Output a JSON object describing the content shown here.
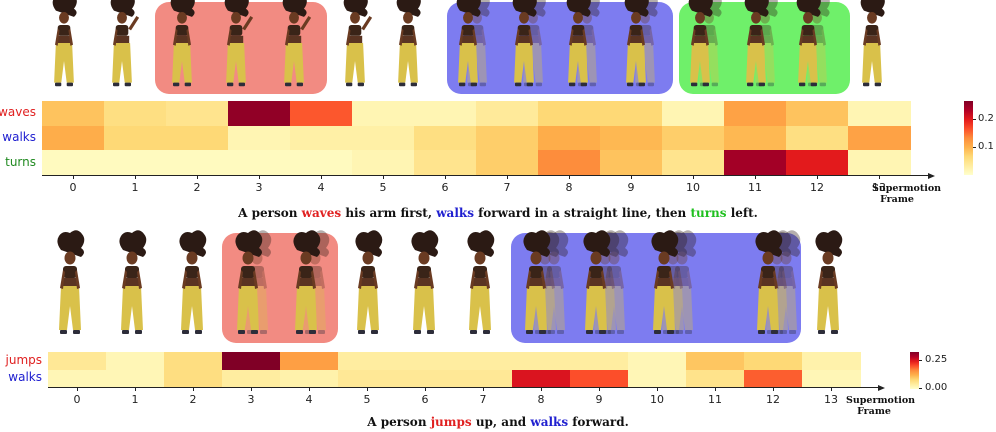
{
  "figures": [
    {
      "caption": {
        "prefix": "A person ",
        "w1": "waves",
        "mid1": " his arm first, ",
        "w2": "walks",
        "mid2": " forward in a straight line, then ",
        "w3": "turns",
        "suffix": " left."
      },
      "x_title_line1": "Supermotion",
      "x_title_line2": "Frame",
      "colorbar_ticks": [
        "0.2",
        "0.1"
      ],
      "highlight_colors": [
        "#f28b82",
        "#7d7cf0",
        "#6ff06a"
      ]
    },
    {
      "caption": {
        "prefix": "A person ",
        "w1": "jumps",
        "mid1": " up, and ",
        "w2": "walks",
        "suffix": " forward."
      },
      "x_title_line1": "Supermotion",
      "x_title_line2": "Frame",
      "colorbar_ticks": [
        "0.25",
        "0.00"
      ],
      "highlight_colors": [
        "#f28b82",
        "#7d7cf0"
      ]
    }
  ],
  "chart_data": [
    {
      "type": "heatmap",
      "rows": [
        "waves",
        "walks",
        "turns"
      ],
      "row_colors": [
        "#e02020",
        "#2020d0",
        "#208a20"
      ],
      "x": [
        "0",
        "1",
        "2",
        "3",
        "4",
        "5",
        "6",
        "7",
        "8",
        "9",
        "10",
        "11",
        "12",
        "13"
      ],
      "xlabel": "Supermotion Frame",
      "colorbar_range": [
        0,
        0.28
      ],
      "values": [
        [
          0.09,
          0.06,
          0.05,
          0.27,
          0.17,
          0.02,
          0.02,
          0.04,
          0.07,
          0.07,
          0.02,
          0.12,
          0.09,
          0.02
        ],
        [
          0.11,
          0.07,
          0.07,
          0.02,
          0.03,
          0.03,
          0.06,
          0.08,
          0.11,
          0.1,
          0.08,
          0.1,
          0.06,
          0.12
        ],
        [
          0.01,
          0.01,
          0.01,
          0.01,
          0.01,
          0.02,
          0.05,
          0.08,
          0.14,
          0.09,
          0.05,
          0.26,
          0.21,
          0.02
        ]
      ]
    },
    {
      "type": "heatmap",
      "rows": [
        "jumps",
        "walks"
      ],
      "row_colors": [
        "#e02020",
        "#2020d0"
      ],
      "x": [
        "0",
        "1",
        "2",
        "3",
        "4",
        "5",
        "6",
        "7",
        "8",
        "9",
        "10",
        "11",
        "12",
        "13"
      ],
      "xlabel": "Supermotion Frame",
      "colorbar_range": [
        0,
        0.32
      ],
      "values": [
        [
          0.05,
          0.02,
          0.07,
          0.32,
          0.14,
          0.04,
          0.04,
          0.04,
          0.04,
          0.04,
          0.02,
          0.1,
          0.08,
          0.03
        ],
        [
          0.02,
          0.02,
          0.07,
          0.04,
          0.03,
          0.05,
          0.05,
          0.05,
          0.25,
          0.2,
          0.02,
          0.06,
          0.19,
          0.02
        ]
      ]
    }
  ]
}
